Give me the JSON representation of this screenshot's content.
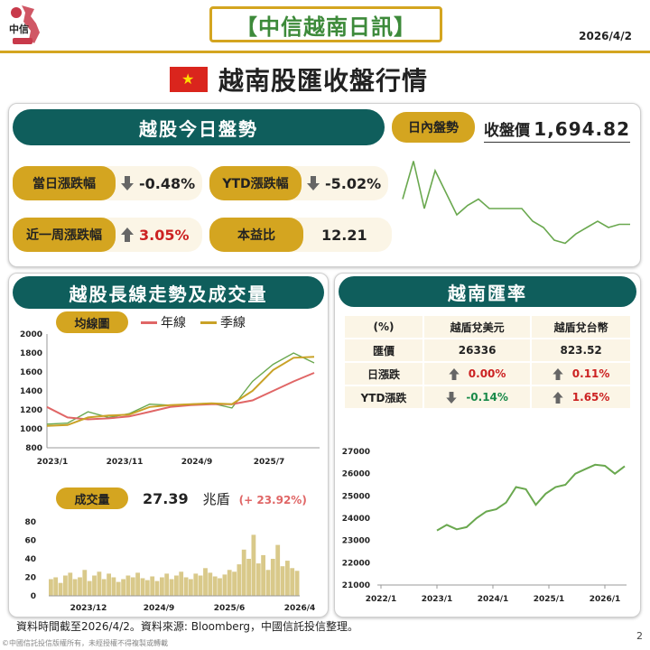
{
  "header": {
    "brand": "中信",
    "title": "【中信越南日訊】",
    "date": "2026/4/2"
  },
  "main_title": "越南股匯收盤行情",
  "today": {
    "title": "越股今日盤勢",
    "intraday_label": "日內盤勢",
    "close_label": "收盤價",
    "close_value": "1,694.82",
    "metrics": [
      {
        "label": "當日漲跌幅",
        "value": "-0.48%",
        "direction": "down"
      },
      {
        "label": "YTD漲跌幅",
        "value": "-5.02%",
        "direction": "down"
      },
      {
        "label": "近一周漲跌幅",
        "value": "3.05%",
        "direction": "up"
      },
      {
        "label": "本益比",
        "value": "12.21",
        "direction": "none"
      }
    ]
  },
  "longterm": {
    "title": "越股長線走勢及成交量",
    "ma_label": "均線圖",
    "legend_year": "年線",
    "legend_quarter": "季線",
    "volume_label": "成交量",
    "volume_value": "27.39",
    "volume_unit": "兆盾",
    "volume_change": "(+ 23.92%)"
  },
  "fx": {
    "title": "越南匯率",
    "headers": [
      "(%)",
      "越盾兌美元",
      "越盾兌台幣"
    ],
    "rows": [
      {
        "label": "匯價",
        "usd": "26336",
        "twd": "823.52",
        "usd_dir": "none",
        "twd_dir": "none"
      },
      {
        "label": "日漲跌",
        "usd": "0.00%",
        "twd": "0.11%",
        "usd_dir": "up",
        "twd_dir": "up"
      },
      {
        "label": "YTD漲跌",
        "usd": "-0.14%",
        "twd": "1.65%",
        "usd_dir": "down",
        "twd_dir": "up"
      }
    ]
  },
  "chart_data": [
    {
      "type": "line",
      "title": "",
      "series": [
        {
          "values": [
            1703,
            1715,
            1700,
            1712,
            1705,
            1698,
            1701,
            1703,
            1700,
            1700,
            1700,
            1700,
            1696,
            1694,
            1690,
            1689,
            1692,
            1694,
            1696,
            1694,
            1695,
            1695
          ]
        }
      ]
    },
    {
      "type": "line",
      "title": "均線圖",
      "x_ticks": [
        "2023/1",
        "2023/11",
        "2024/9",
        "2025/7"
      ],
      "y_ticks": [
        "800",
        "1000",
        "1200",
        "1400",
        "1600",
        "1800",
        "2000"
      ],
      "ylim": [
        800,
        2000
      ],
      "x": [
        "2023/1",
        "2023/4",
        "2023/7",
        "2023/10",
        "2024/1",
        "2024/4",
        "2024/7",
        "2024/10",
        "2025/1",
        "2025/4",
        "2025/7",
        "2025/10",
        "2026/1",
        "2026/4"
      ],
      "series": [
        {
          "name": "",
          "color": "#6aa84f",
          "values": [
            1050,
            1060,
            1180,
            1120,
            1160,
            1260,
            1250,
            1260,
            1270,
            1220,
            1500,
            1680,
            1800,
            1695
          ]
        },
        {
          "name": "年線",
          "color": "#e06666",
          "values": [
            1230,
            1120,
            1100,
            1110,
            1130,
            1180,
            1230,
            1250,
            1260,
            1260,
            1300,
            1400,
            1500,
            1590
          ]
        },
        {
          "name": "季線",
          "color": "#c9a227",
          "values": [
            1030,
            1040,
            1120,
            1140,
            1150,
            1230,
            1250,
            1260,
            1270,
            1260,
            1400,
            1620,
            1750,
            1760
          ]
        }
      ]
    },
    {
      "type": "bar",
      "title": "成交量",
      "x_ticks": [
        "2023/12",
        "2024/9",
        "2025/6",
        "2026/4"
      ],
      "y_ticks": [
        "0",
        "20",
        "40",
        "60",
        "80"
      ],
      "ylim": [
        0,
        80
      ],
      "values": [
        18,
        20,
        14,
        22,
        25,
        18,
        20,
        28,
        16,
        22,
        26,
        18,
        24,
        20,
        15,
        18,
        22,
        20,
        25,
        19,
        17,
        21,
        16,
        20,
        24,
        18,
        22,
        26,
        20,
        18,
        24,
        22,
        30,
        25,
        21,
        19,
        23,
        28,
        26,
        34,
        50,
        40,
        66,
        35,
        44,
        28,
        40,
        55,
        32,
        38,
        30,
        27
      ]
    },
    {
      "type": "line",
      "title": "越南匯率",
      "x_ticks": [
        "2022/1",
        "2023/1",
        "2024/1",
        "2025/1",
        "2026/1"
      ],
      "y_ticks": [
        "21000",
        "22000",
        "23000",
        "24000",
        "25000",
        "26000",
        "27000"
      ],
      "ylim": [
        21000,
        27000
      ],
      "x": [
        "2023/1",
        "2023/3",
        "2023/5",
        "2023/7",
        "2023/9",
        "2023/11",
        "2024/1",
        "2024/3",
        "2024/5",
        "2024/7",
        "2024/9",
        "2024/11",
        "2025/1",
        "2025/3",
        "2025/5",
        "2025/7",
        "2025/9",
        "2025/11",
        "2026/1",
        "2026/3"
      ],
      "series": [
        {
          "name": "",
          "color": "#6aa84f",
          "values": [
            23450,
            23700,
            23500,
            23600,
            24000,
            24300,
            24400,
            24700,
            25400,
            25300,
            24600,
            25100,
            25400,
            25500,
            26000,
            26200,
            26400,
            26350,
            26000,
            26336
          ]
        }
      ]
    }
  ],
  "footer": {
    "source": "資料時間截至2026/4/2。資料來源: Bloomberg，中國信託投信整理。",
    "copyright": "©中國信託投信版權所有，未經授權不得複製或轉載",
    "page": "2"
  }
}
